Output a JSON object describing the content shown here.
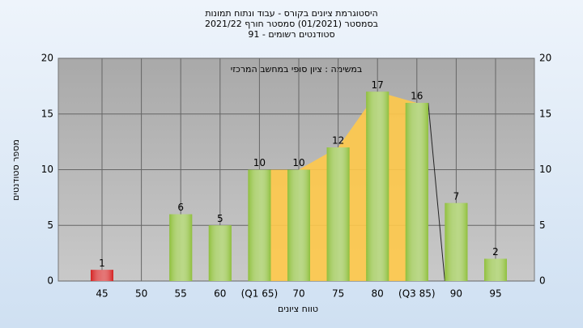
{
  "chart_data": {
    "type": "bar",
    "title": "היסטוגרמת ציונים בקורס - עבוד ונתוח תמונות",
    "subtitle": [
      "בסמסטר  (01/2021)  סמסטר חורף 2021/22",
      "סטודנטים רשומים - 91"
    ],
    "annotation": "במשימה : ציון סופי במחשב המרכזי",
    "x_label": "טווח ציונים",
    "y_label": "מספר סטודנטים",
    "categories": [
      "45",
      "50",
      "55",
      "60",
      "(Q1 65)",
      "70",
      "75",
      "80",
      "(Q3 85)",
      "90",
      "95"
    ],
    "values": [
      1,
      0,
      6,
      5,
      10,
      10,
      12,
      17,
      16,
      7,
      2
    ],
    "colors": [
      "#d42020",
      "#8fbf3c",
      "#8fbf3c",
      "#8fbf3c",
      "#8fbf3c",
      "#8fbf3c",
      "#8fbf3c",
      "#8fbf3c",
      "#8fbf3c",
      "#8fbf3c",
      "#8fbf3c"
    ],
    "ylim": [
      0,
      20
    ],
    "yticks": [
      0,
      5,
      10,
      15,
      20
    ],
    "grid": true
  }
}
